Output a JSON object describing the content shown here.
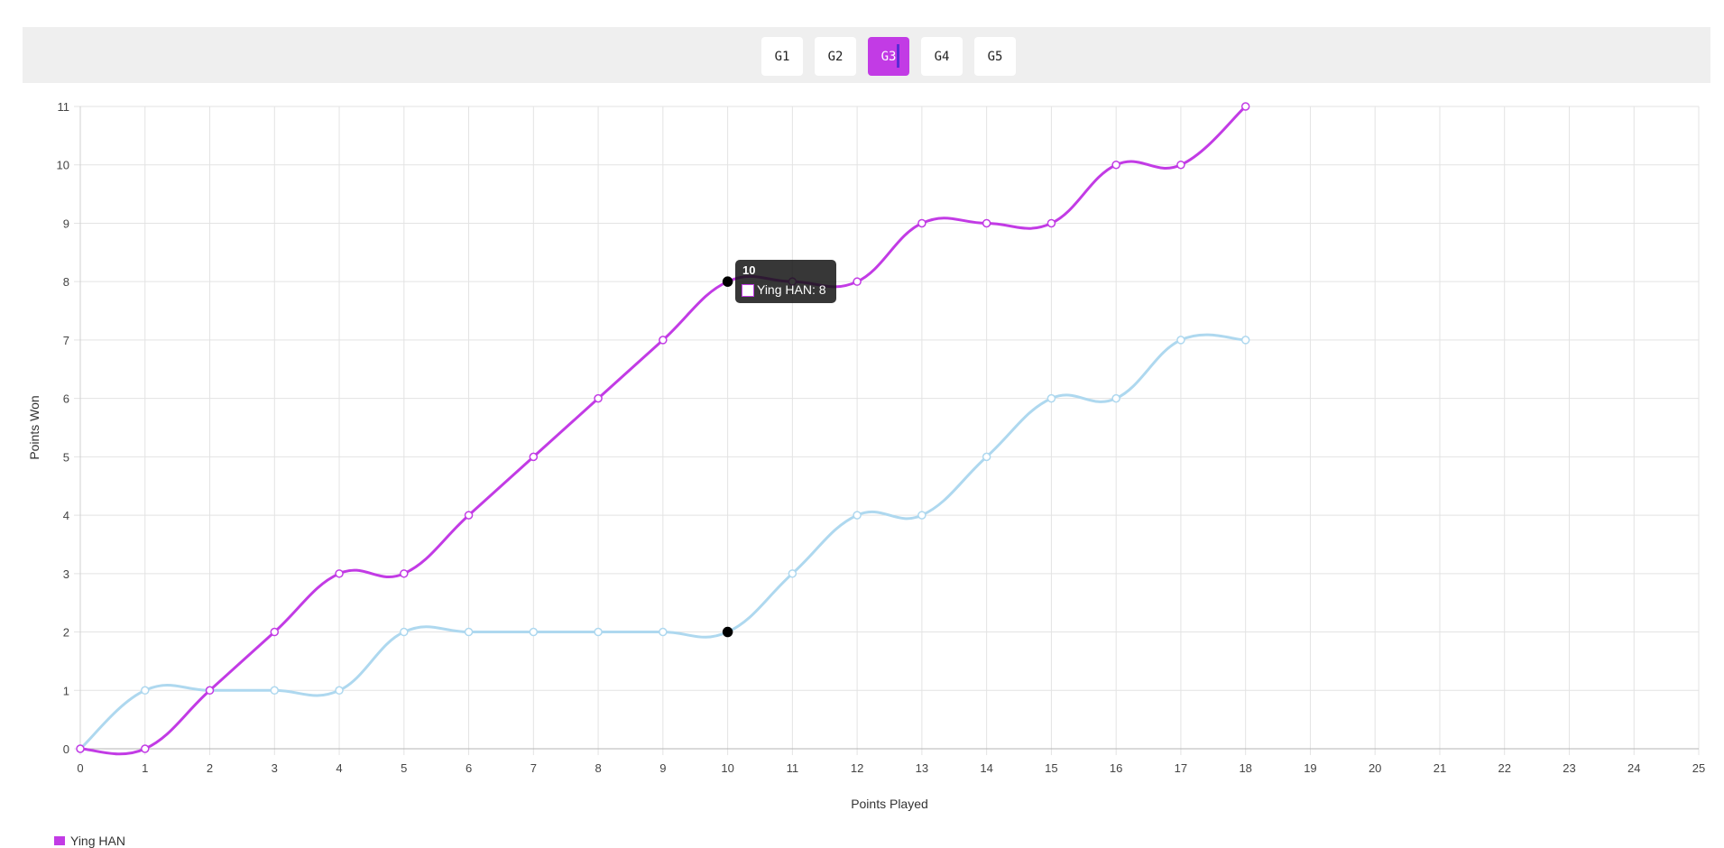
{
  "game_tabs": [
    {
      "label": "G1",
      "active": false
    },
    {
      "label": "G2",
      "active": false
    },
    {
      "label": "G3",
      "active": true
    },
    {
      "label": "G4",
      "active": false
    },
    {
      "label": "G5",
      "active": false
    }
  ],
  "chart_data": {
    "type": "line",
    "xlabel": "Points Played",
    "ylabel": "Points Won",
    "xlim": [
      0,
      25
    ],
    "ylim": [
      0,
      11
    ],
    "grid": true,
    "x": [
      0,
      1,
      2,
      3,
      4,
      5,
      6,
      7,
      8,
      9,
      10,
      11,
      12,
      13,
      14,
      15,
      16,
      17,
      18
    ],
    "series": [
      {
        "name": "Ying HAN",
        "color": "#c23be5",
        "values": [
          0,
          0,
          1,
          2,
          3,
          3,
          4,
          5,
          6,
          7,
          8,
          8,
          8,
          9,
          9,
          9,
          10,
          10,
          11
        ]
      },
      {
        "name": "",
        "color": "#aed8ef",
        "values": [
          0,
          1,
          1,
          1,
          1,
          2,
          2,
          2,
          2,
          2,
          2,
          3,
          4,
          4,
          5,
          6,
          6,
          7,
          7
        ]
      }
    ],
    "highlight_x": 10,
    "tooltip": {
      "title": "10",
      "label": "Ying HAN: 8"
    },
    "legend": {
      "label": "Ying HAN",
      "placement": "bottom-left"
    }
  }
}
